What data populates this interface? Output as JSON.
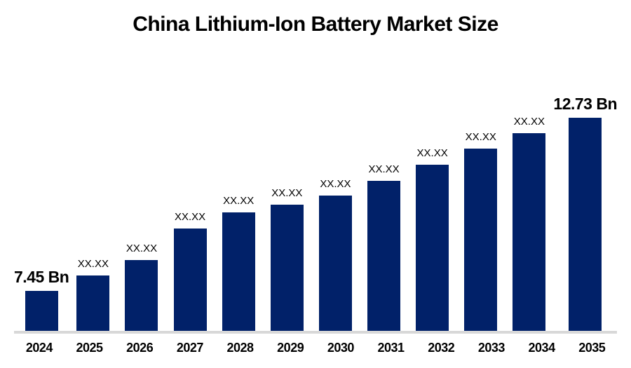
{
  "title": "China Lithium-Ion Battery Market Size",
  "colors": {
    "bar": "#012169",
    "axis_line": "#d8d8d8",
    "text": "#000000",
    "background": "#ffffff"
  },
  "chart_data": {
    "type": "bar",
    "title": "China Lithium-Ion Battery Market Size",
    "unit": "Bn",
    "categories": [
      "2024",
      "2025",
      "2026",
      "2027",
      "2028",
      "2029",
      "2030",
      "2031",
      "2032",
      "2033",
      "2034",
      "2035"
    ],
    "values": [
      7.45,
      7.92,
      8.39,
      9.35,
      9.83,
      10.08,
      10.35,
      10.8,
      11.3,
      11.79,
      12.26,
      12.73
    ],
    "labels": [
      "7.45 Bn",
      "XX.XX",
      "XX.XX",
      "XX.XX",
      "XX.XX",
      "XX.XX",
      "XX.XX",
      "XX.XX",
      "XX.XX",
      "XX.XX",
      "XX.XX",
      "12.73 Bn"
    ],
    "first_value_label": "7.45 Bn",
    "last_value_label": "12.73 Bn",
    "masked_label_text": "XX.XX",
    "xlabel": "",
    "ylabel": "",
    "ylim": [
      6.23,
      13.28
    ],
    "grid": false,
    "legend": false,
    "bar_color": "#012169"
  }
}
